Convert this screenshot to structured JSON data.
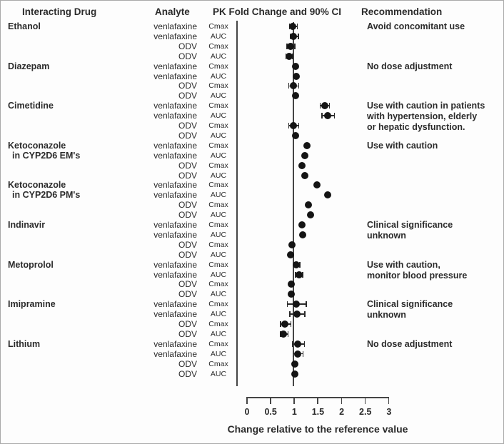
{
  "header": {
    "interacting_drug": "Interacting Drug",
    "analyte": "Analyte",
    "pk": "PK Fold Change and 90% CI",
    "recommendation": "Recommendation"
  },
  "colors": {
    "point": "#141414",
    "line": "#454545",
    "text": "#2b2b2b",
    "background": "#fdfdfd"
  },
  "chart_data": {
    "type": "scatter",
    "subtype": "forest-plot",
    "xlabel": "Change relative to the reference value",
    "xlim": [
      0,
      3
    ],
    "xticks": [
      0,
      0.5,
      1,
      1.5,
      2,
      2.5,
      3
    ],
    "xtick_labels": [
      "0",
      "0.5",
      "1",
      "1.5",
      "2",
      "2.5",
      "3"
    ],
    "reference_line_x": 1,
    "grid": false,
    "legend": null,
    "groups": [
      {
        "drug": [
          "Ethanol"
        ],
        "recommendation": [
          "Avoid concomitant use"
        ],
        "rows": [
          {
            "analyte": "venlafaxine",
            "param": "Cmax",
            "value": 0.98,
            "ci": [
              0.91,
              1.08
            ]
          },
          {
            "analyte": "venlafaxine",
            "param": "AUC",
            "value": 1.0,
            "ci": [
              0.93,
              1.1
            ]
          },
          {
            "analyte": "ODV",
            "param": "Cmax",
            "value": 0.94,
            "ci": [
              0.86,
              1.03
            ]
          },
          {
            "analyte": "ODV",
            "param": "AUC",
            "value": 0.9,
            "ci": [
              0.84,
              0.98
            ]
          }
        ]
      },
      {
        "drug": [
          "Diazepam"
        ],
        "recommendation": [
          "No dose adjustment"
        ],
        "rows": [
          {
            "analyte": "venlafaxine",
            "param": "Cmax",
            "value": 1.04,
            "ci": null
          },
          {
            "analyte": "venlafaxine",
            "param": "AUC",
            "value": 1.05,
            "ci": null
          },
          {
            "analyte": "ODV",
            "param": "Cmax",
            "value": 1.0,
            "ci": [
              0.9,
              1.11
            ]
          },
          {
            "analyte": "ODV",
            "param": "AUC",
            "value": 1.04,
            "ci": null
          }
        ]
      },
      {
        "drug": [
          "Cimetidine"
        ],
        "recommendation": [
          "Use with caution in patients",
          "with hypertension, elderly",
          "or hepatic dysfunction."
        ],
        "rows": [
          {
            "analyte": "venlafaxine",
            "param": "Cmax",
            "value": 1.66,
            "ci": [
              1.56,
              1.76
            ]
          },
          {
            "analyte": "venlafaxine",
            "param": "AUC",
            "value": 1.72,
            "ci": [
              1.6,
              1.86
            ]
          },
          {
            "analyte": "ODV",
            "param": "Cmax",
            "value": 1.0,
            "ci": [
              0.9,
              1.11
            ]
          },
          {
            "analyte": "ODV",
            "param": "AUC",
            "value": 1.04,
            "ci": null
          }
        ]
      },
      {
        "drug": [
          "Ketoconazole",
          "in CYP2D6 EM's"
        ],
        "recommendation": [
          "Use with caution"
        ],
        "rows": [
          {
            "analyte": "venlafaxine",
            "param": "Cmax",
            "value": 1.28,
            "ci": null
          },
          {
            "analyte": "venlafaxine",
            "param": "AUC",
            "value": 1.24,
            "ci": null
          },
          {
            "analyte": "ODV",
            "param": "Cmax",
            "value": 1.17,
            "ci": null
          },
          {
            "analyte": "ODV",
            "param": "AUC",
            "value": 1.24,
            "ci": null
          }
        ]
      },
      {
        "drug": [
          "Ketoconazole",
          "in CYP2D6 PM's"
        ],
        "recommendation": [],
        "rows": [
          {
            "analyte": "venlafaxine",
            "param": "Cmax",
            "value": 1.5,
            "ci": null
          },
          {
            "analyte": "venlafaxine",
            "param": "AUC",
            "value": 1.72,
            "ci": null
          },
          {
            "analyte": "ODV",
            "param": "Cmax",
            "value": 1.31,
            "ci": null
          },
          {
            "analyte": "ODV",
            "param": "AUC",
            "value": 1.35,
            "ci": null
          }
        ]
      },
      {
        "drug": [
          "Indinavir"
        ],
        "recommendation": [
          "Clinical significance",
          "unknown"
        ],
        "rows": [
          {
            "analyte": "venlafaxine",
            "param": "Cmax",
            "value": 1.17,
            "ci": null
          },
          {
            "analyte": "venlafaxine",
            "param": "AUC",
            "value": 1.19,
            "ci": null
          },
          {
            "analyte": "ODV",
            "param": "Cmax",
            "value": 0.97,
            "ci": null
          },
          {
            "analyte": "ODV",
            "param": "AUC",
            "value": 0.94,
            "ci": null
          }
        ]
      },
      {
        "drug": [
          "Metoprolol"
        ],
        "recommendation": [
          "Use with caution,",
          "monitor blood pressure"
        ],
        "rows": [
          {
            "analyte": "venlafaxine",
            "param": "Cmax",
            "value": 1.06,
            "ci": [
              1.0,
              1.13
            ]
          },
          {
            "analyte": "venlafaxine",
            "param": "AUC",
            "value": 1.11,
            "ci": [
              1.04,
              1.19
            ]
          },
          {
            "analyte": "ODV",
            "param": "Cmax",
            "value": 0.95,
            "ci": null
          },
          {
            "analyte": "ODV",
            "param": "AUC",
            "value": 0.95,
            "ci": null
          }
        ]
      },
      {
        "drug": [
          "Imipramine"
        ],
        "recommendation": [
          "Clinical significance",
          "unknown"
        ],
        "rows": [
          {
            "analyte": "venlafaxine",
            "param": "Cmax",
            "value": 1.05,
            "ci": [
              0.87,
              1.27
            ]
          },
          {
            "analyte": "venlafaxine",
            "param": "AUC",
            "value": 1.07,
            "ci": [
              0.92,
              1.24
            ]
          },
          {
            "analyte": "ODV",
            "param": "Cmax",
            "value": 0.82,
            "ci": [
              0.72,
              0.94
            ]
          },
          {
            "analyte": "ODV",
            "param": "AUC",
            "value": 0.79,
            "ci": [
              0.72,
              0.88
            ]
          }
        ]
      },
      {
        "drug": [
          "Lithium"
        ],
        "recommendation": [
          "No dose adjustment"
        ],
        "rows": [
          {
            "analyte": "venlafaxine",
            "param": "Cmax",
            "value": 1.09,
            "ci": [
              0.97,
              1.23
            ]
          },
          {
            "analyte": "venlafaxine",
            "param": "AUC",
            "value": 1.09,
            "ci": [
              0.99,
              1.2
            ]
          },
          {
            "analyte": "ODV",
            "param": "Cmax",
            "value": 1.03,
            "ci": null
          },
          {
            "analyte": "ODV",
            "param": "AUC",
            "value": 1.03,
            "ci": null
          }
        ]
      }
    ]
  }
}
